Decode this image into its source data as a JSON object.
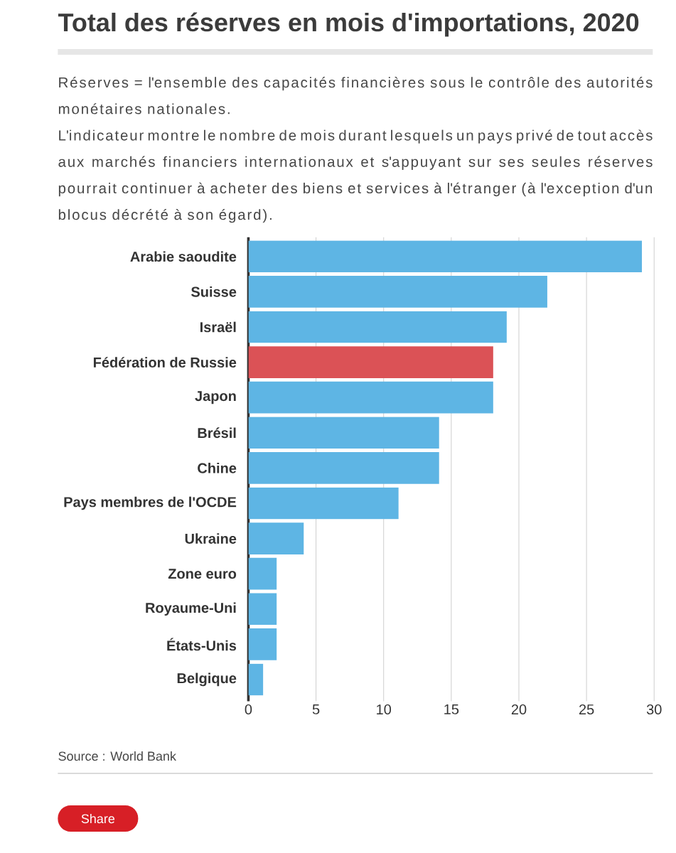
{
  "chart_data": {
    "type": "bar",
    "orientation": "horizontal",
    "title": "Total des réserves en mois d'importations, 2020",
    "subtitle": "Réserves = l'ensemble des capacités financières sous le contrôle des autorités monétaires nationales.",
    "annotations": [
      "L'indicateur montre le nombre de mois durant lesquels un pays privé de tout accès aux marchés financiers internationaux et s'appuyant sur ses seules réserves pourrait continuer à acheter des biens et services à l'étranger (à l'exception d'un blocus décrété à son égard).",
      "Source : World Bank",
      "Share"
    ],
    "categories": [
      "Arabie saoudite",
      "Suisse",
      "Israël",
      "Fédération de Russie",
      "Japon",
      "Brésil",
      "Chine",
      "Pays membres de l'OCDE",
      "Ukraine",
      "Zone euro",
      "Royaume-Uni",
      "États-Unis",
      "Belgique"
    ],
    "values": [
      29.1,
      22.1,
      19.1,
      18.1,
      18.1,
      14.1,
      14.1,
      11.1,
      4.1,
      2.1,
      2.1,
      2.1,
      1.1
    ],
    "colors": [
      "#5eb5e4",
      "#5eb5e4",
      "#5eb5e4",
      "#db5256",
      "#5eb5e4",
      "#5eb5e4",
      "#5eb5e4",
      "#5eb5e4",
      "#5eb5e4",
      "#5eb5e4",
      "#5eb5e4",
      "#5eb5e4",
      "#5eb5e4"
    ],
    "xlim": [
      0,
      30
    ],
    "xticks": [
      0,
      5,
      10,
      15,
      20,
      25,
      30
    ],
    "grid": "x"
  }
}
